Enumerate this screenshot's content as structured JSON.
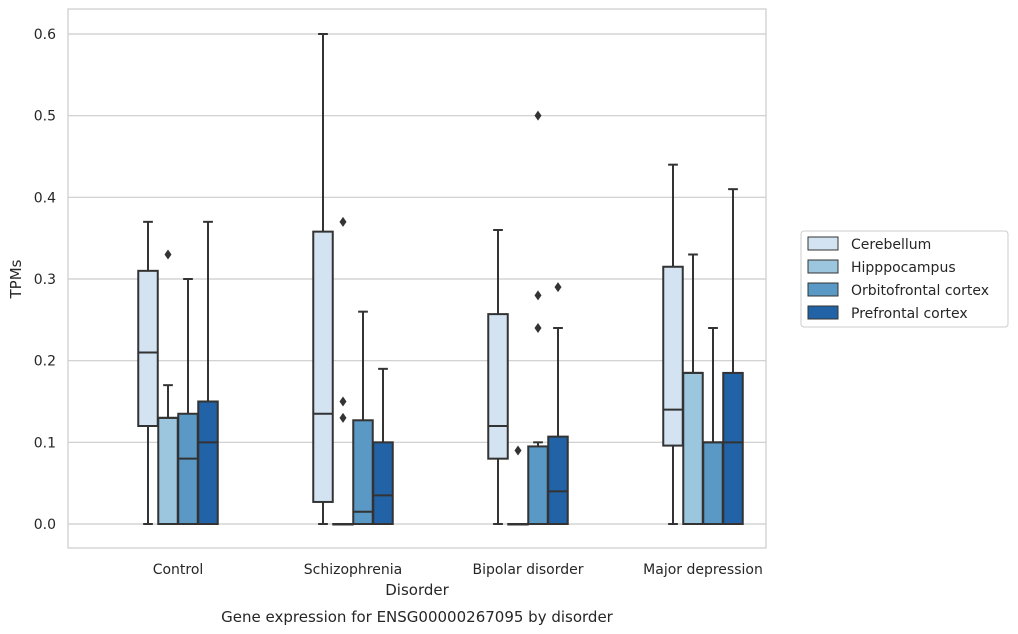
{
  "chart_data": {
    "type": "box",
    "title": "",
    "caption": "Gene expression for ENSG00000267095 by disorder",
    "xlabel": "Disorder",
    "ylabel": "TPMs",
    "ylim": [
      -0.03,
      0.63
    ],
    "yticks": [
      0.0,
      0.1,
      0.2,
      0.3,
      0.4,
      0.5,
      0.6
    ],
    "ytick_labels": [
      "0.0",
      "0.1",
      "0.2",
      "0.3",
      "0.4",
      "0.5",
      "0.6"
    ],
    "grid": true,
    "legend_position": "right",
    "categories": [
      "Control",
      "Schizophrenia",
      "Bipolar disorder",
      "Major depression"
    ],
    "series": [
      {
        "name": "Cerebellum",
        "color": "#d3e3f1",
        "boxes": [
          {
            "whisker_low": 0.0,
            "q1": 0.12,
            "median": 0.21,
            "q3": 0.31,
            "whisker_high": 0.37,
            "outliers": []
          },
          {
            "whisker_low": 0.0,
            "q1": 0.027,
            "median": 0.135,
            "q3": 0.358,
            "whisker_high": 0.6,
            "outliers": []
          },
          {
            "whisker_low": 0.0,
            "q1": 0.08,
            "median": 0.12,
            "q3": 0.257,
            "whisker_high": 0.36,
            "outliers": []
          },
          {
            "whisker_low": 0.0,
            "q1": 0.096,
            "median": 0.14,
            "q3": 0.315,
            "whisker_high": 0.44,
            "outliers": []
          }
        ]
      },
      {
        "name": "Hipppocampus",
        "color": "#9cc5de",
        "boxes": [
          {
            "whisker_low": 0.0,
            "q1": 0.0,
            "median": 0.13,
            "q3": 0.13,
            "whisker_high": 0.17,
            "outliers": [
              0.33
            ]
          },
          {
            "whisker_low": 0.0,
            "q1": 0.0,
            "median": 0.0,
            "q3": 0.0,
            "whisker_high": 0.0,
            "outliers": [
              0.13,
              0.15,
              0.37
            ]
          },
          {
            "whisker_low": 0.0,
            "q1": 0.0,
            "median": 0.0,
            "q3": 0.0,
            "whisker_high": 0.0,
            "outliers": [
              0.09
            ]
          },
          {
            "whisker_low": 0.0,
            "q1": 0.0,
            "median": 0.185,
            "q3": 0.185,
            "whisker_high": 0.33,
            "outliers": []
          }
        ]
      },
      {
        "name": "Orbitofrontal cortex",
        "color": "#5a98c5",
        "boxes": [
          {
            "whisker_low": 0.0,
            "q1": 0.0,
            "median": 0.08,
            "q3": 0.135,
            "whisker_high": 0.3,
            "outliers": []
          },
          {
            "whisker_low": 0.0,
            "q1": 0.0,
            "median": 0.015,
            "q3": 0.127,
            "whisker_high": 0.26,
            "outliers": []
          },
          {
            "whisker_low": 0.0,
            "q1": 0.0,
            "median": 0.0,
            "q3": 0.095,
            "whisker_high": 0.1,
            "outliers": [
              0.24,
              0.28,
              0.5
            ]
          },
          {
            "whisker_low": 0.0,
            "q1": 0.0,
            "median": 0.1,
            "q3": 0.1,
            "whisker_high": 0.24,
            "outliers": []
          }
        ]
      },
      {
        "name": "Prefrontal cortex",
        "color": "#2163a6",
        "boxes": [
          {
            "whisker_low": 0.0,
            "q1": 0.0,
            "median": 0.1,
            "q3": 0.15,
            "whisker_high": 0.37,
            "outliers": []
          },
          {
            "whisker_low": 0.0,
            "q1": 0.0,
            "median": 0.035,
            "q3": 0.1,
            "whisker_high": 0.19,
            "outliers": []
          },
          {
            "whisker_low": 0.0,
            "q1": 0.0,
            "median": 0.04,
            "q3": 0.107,
            "whisker_high": 0.24,
            "outliers": [
              0.29
            ]
          },
          {
            "whisker_low": 0.0,
            "q1": 0.0,
            "median": 0.1,
            "q3": 0.185,
            "whisker_high": 0.41,
            "outliers": []
          }
        ]
      }
    ]
  }
}
